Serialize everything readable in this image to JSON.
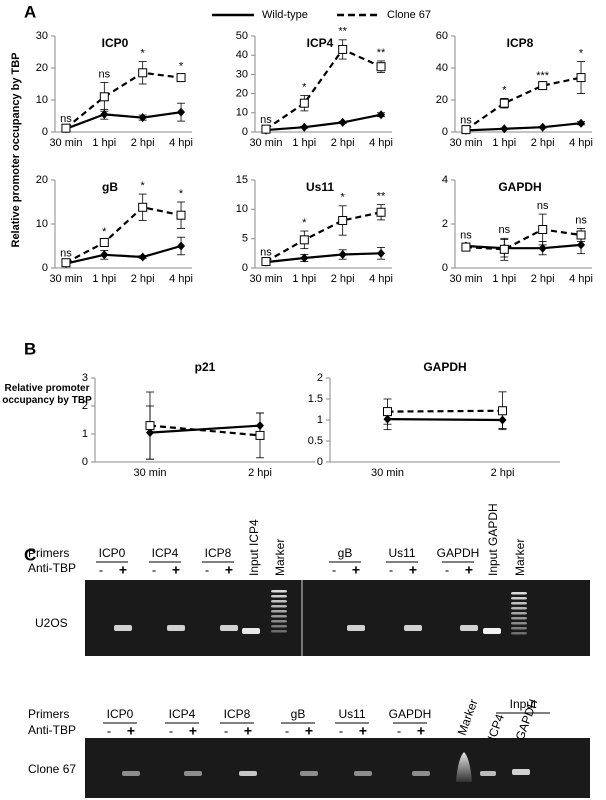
{
  "panels": [
    "A",
    "B",
    "C"
  ],
  "y_label": "Relative promoter occupancy by TBP",
  "legend": [
    {
      "name": "Wild-type",
      "color": "#000000",
      "line_style": "solid",
      "marker": "diamond"
    },
    {
      "name": "Clone 67",
      "color": "#000000",
      "line_style": "dashed",
      "marker": "open-square"
    }
  ],
  "chart_data": [
    {
      "type": "line",
      "title": "ICP0",
      "categories": [
        "30 min",
        "1 hpi",
        "2 hpi",
        "4 hpi"
      ],
      "ylim": [
        0,
        30
      ],
      "yticks": [
        0,
        10,
        20,
        30
      ],
      "series": [
        {
          "values": [
            1,
            5.5,
            4.5,
            6.2
          ],
          "errors": [
            0.5,
            1.5,
            0.8,
            2.8
          ]
        },
        {
          "values": [
            1.2,
            11,
            18.5,
            17
          ],
          "errors": [
            0.3,
            4.5,
            3.5,
            1
          ]
        }
      ],
      "annotations": [
        "ns",
        "ns",
        "*",
        "*"
      ]
    },
    {
      "type": "line",
      "title": "ICP4",
      "categories": [
        "30 min",
        "1 hpi",
        "2 hpi",
        "4 hpi"
      ],
      "ylim": [
        0,
        50
      ],
      "yticks": [
        0,
        10,
        20,
        30,
        40,
        50
      ],
      "series": [
        {
          "values": [
            1,
            2.5,
            5,
            9
          ],
          "errors": [
            0.3,
            0.5,
            0.5,
            1
          ]
        },
        {
          "values": [
            1.5,
            15,
            43,
            34
          ],
          "errors": [
            0.5,
            4,
            5,
            3
          ]
        }
      ],
      "annotations": [
        "ns",
        "*",
        "**",
        "**"
      ]
    },
    {
      "type": "line",
      "title": "ICP8",
      "categories": [
        "30 min",
        "1 hpi",
        "2 hpi",
        "4 hpi"
      ],
      "ylim": [
        0,
        60
      ],
      "yticks": [
        0,
        20,
        40,
        60
      ],
      "series": [
        {
          "values": [
            1,
            2,
            3,
            5.5
          ],
          "errors": [
            0.3,
            0.5,
            0.5,
            1
          ]
        },
        {
          "values": [
            1.5,
            18,
            29,
            34
          ],
          "errors": [
            0.5,
            3,
            1,
            10
          ]
        }
      ],
      "annotations": [
        "ns",
        "*",
        "***",
        "*"
      ]
    },
    {
      "type": "line",
      "title": "gB",
      "categories": [
        "30 min",
        "1 hpi",
        "2 hpi",
        "4 hpi"
      ],
      "ylim": [
        0,
        20
      ],
      "yticks": [
        0,
        10,
        20
      ],
      "series": [
        {
          "values": [
            1,
            3,
            2.5,
            5
          ],
          "errors": [
            0.2,
            1,
            0.3,
            2
          ]
        },
        {
          "values": [
            1.2,
            5.8,
            13.8,
            12
          ],
          "errors": [
            0.3,
            0.5,
            3,
            3
          ]
        }
      ],
      "annotations": [
        "ns",
        "*",
        "*",
        "*"
      ]
    },
    {
      "type": "line",
      "title": "Us11",
      "categories": [
        "30 min",
        "1 hpi",
        "2 hpi",
        "4 hpi"
      ],
      "ylim": [
        0,
        15
      ],
      "yticks": [
        0,
        5,
        10,
        15
      ],
      "series": [
        {
          "values": [
            1,
            1.7,
            2.3,
            2.5
          ],
          "errors": [
            0.2,
            0.6,
            0.8,
            1
          ]
        },
        {
          "values": [
            1.1,
            4.8,
            8.1,
            9.5
          ],
          "errors": [
            0.2,
            1.5,
            2.5,
            1.3
          ]
        }
      ],
      "annotations": [
        "ns",
        "*",
        "*",
        "**"
      ]
    },
    {
      "type": "line",
      "title": "GAPDH",
      "categories": [
        "30 min",
        "1 hpi",
        "2 hpi",
        "4 hpi"
      ],
      "ylim": [
        0,
        4
      ],
      "yticks": [
        0,
        2,
        4
      ],
      "series": [
        {
          "values": [
            1,
            0.9,
            0.9,
            1.05
          ],
          "errors": [
            0.1,
            0.4,
            0.3,
            0.4
          ]
        },
        {
          "values": [
            0.95,
            0.85,
            1.75,
            1.5
          ],
          "errors": [
            0.15,
            0.5,
            0.7,
            0.3
          ]
        }
      ],
      "annotations": [
        "ns",
        "ns",
        "ns",
        "ns"
      ]
    },
    {
      "type": "line",
      "title": "p21",
      "categories": [
        "30 min",
        "2 hpi"
      ],
      "ylim": [
        0,
        3
      ],
      "yticks": [
        0,
        1,
        2,
        3
      ],
      "series": [
        {
          "values": [
            1.05,
            1.3
          ],
          "errors": [
            0.95,
            0.45
          ]
        },
        {
          "values": [
            1.3,
            0.95
          ],
          "errors": [
            1.2,
            0.8
          ]
        }
      ]
    },
    {
      "type": "line",
      "title": "GAPDH",
      "categories": [
        "30 min",
        "2 hpi"
      ],
      "ylim": [
        0,
        2
      ],
      "yticks": [
        0,
        0.5,
        1,
        1.5,
        2
      ],
      "series": [
        {
          "values": [
            1.02,
            1.0
          ],
          "errors": [
            0.25,
            0.2
          ]
        },
        {
          "values": [
            1.2,
            1.22
          ],
          "errors": [
            0.3,
            0.45
          ]
        }
      ]
    }
  ],
  "gels": [
    {
      "cell_line": "U2OS",
      "primers_label": "Primers",
      "antibody_label": "Anti-TBP",
      "signs": [
        "-",
        "+"
      ],
      "lanes": [
        "ICP0",
        "ICP4",
        "ICP8",
        "Input ICP4",
        "Marker",
        "gB",
        "Us11",
        "GAPDH",
        "Input GAPDH",
        "Marker"
      ]
    },
    {
      "cell_line": "Clone 67",
      "primers_label": "Primers",
      "antibody_label": "Anti-TBP",
      "signs": [
        "-",
        "+"
      ],
      "lanes": [
        "ICP0",
        "ICP4",
        "ICP8",
        "gB",
        "Us11",
        "GAPDH",
        "Marker",
        "Input",
        "ICP4",
        "GAPDH"
      ]
    }
  ]
}
